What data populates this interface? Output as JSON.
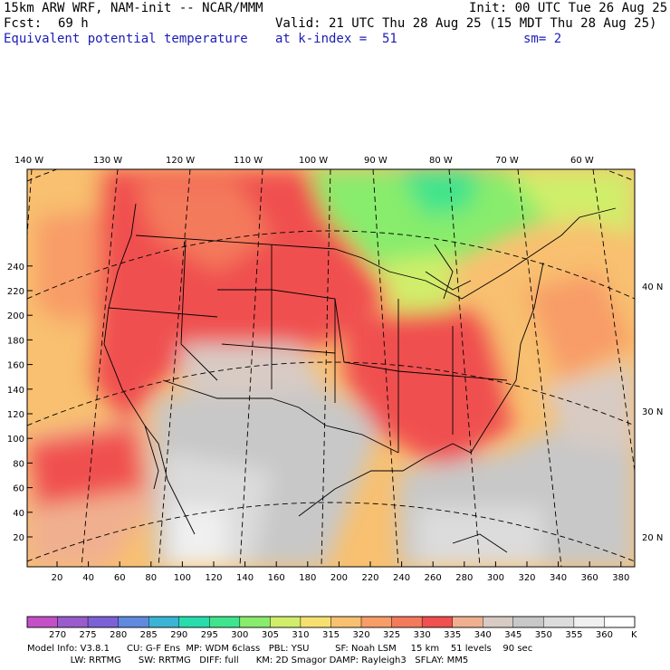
{
  "header": {
    "model": "15km ARW WRF, NAM-init -- NCAR/MMM",
    "init": "Init: 00 UTC Tue 26 Aug 25",
    "fcst_label": "Fcst:",
    "fcst_value": "69 h",
    "valid": "Valid: 21 UTC Thu 28 Aug 25 (15 MDT Thu 28 Aug 25)",
    "field": "Equivalent potential temperature",
    "level": "at k-index =  51",
    "smooth": "sm= 2"
  },
  "map": {
    "top_lon_labels": [
      "140 W",
      "130 W",
      "120 W",
      "110 W",
      "100 W",
      "90 W",
      "80 W",
      "70 W",
      "60 W"
    ],
    "right_lat_labels": [
      "40 N",
      "30 N",
      "20 N"
    ],
    "y_ticks": [
      "20",
      "40",
      "60",
      "80",
      "100",
      "120",
      "140",
      "160",
      "180",
      "200",
      "220",
      "240"
    ],
    "x_ticks": [
      "20",
      "40",
      "60",
      "80",
      "100",
      "120",
      "140",
      "160",
      "180",
      "200",
      "220",
      "240",
      "260",
      "280",
      "300",
      "320",
      "340",
      "360",
      "380"
    ]
  },
  "colorbar": {
    "labels": [
      "270",
      "275",
      "280",
      "285",
      "290",
      "295",
      "300",
      "305",
      "310",
      "315",
      "320",
      "325",
      "330",
      "335",
      "340",
      "345",
      "350",
      "355",
      "360"
    ],
    "unit": "K",
    "colors": [
      "#c450c8",
      "#9a5ccc",
      "#7a62d6",
      "#5f8ae0",
      "#3cb4d6",
      "#28dcac",
      "#40e48c",
      "#88ec6c",
      "#d0ee6a",
      "#f8e070",
      "#f8c070",
      "#f89c68",
      "#f47a5c",
      "#f05050",
      "#f0b090",
      "#d8cbc4",
      "#c8c8c8",
      "#dcdcdc",
      "#f0f0f0",
      "#ffffff"
    ]
  },
  "footer": {
    "line1": "Model Info: V3.8.1      CU: G-F Ens  MP: WDM 6class   PBL: YSU         SF: Noah LSM     15 km    51 levels    90 sec",
    "line2": "               LW: RRTMG      SW: RRTMG   DIFF: full      KM: 2D Smagor DAMP: Rayleigh3   SFLAY: MM5"
  }
}
